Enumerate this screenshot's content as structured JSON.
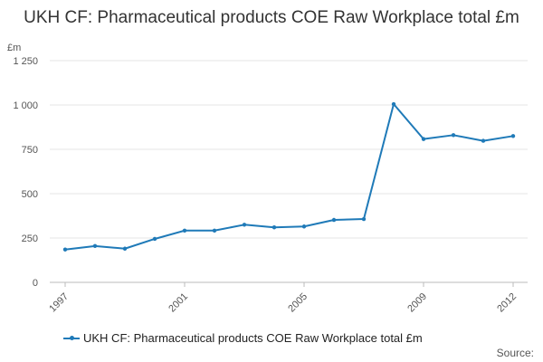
{
  "chart_data": {
    "type": "line",
    "title": "UKH CF: Pharmaceutical products COE Raw Workplace total £m",
    "ylabel": "£m",
    "xlabel": "",
    "x": [
      1997,
      1998,
      1999,
      2000,
      2001,
      2002,
      2003,
      2004,
      2005,
      2006,
      2007,
      2008,
      2009,
      2010,
      2011,
      2012
    ],
    "x_ticks": [
      1997,
      2001,
      2005,
      2009,
      2012
    ],
    "y_ticks": [
      "0",
      "250",
      "500",
      "750",
      "1 000",
      "1 250"
    ],
    "ylim": [
      0,
      1250
    ],
    "grid": true,
    "legend_position": "bottom",
    "series": [
      {
        "name": "UKH CF: Pharmaceutical products COE Raw Workplace total £m",
        "color": "#1f7ab8",
        "values": [
          185,
          205,
          190,
          245,
          292,
          292,
          325,
          310,
          315,
          352,
          357,
          1005,
          808,
          830,
          798,
          825
        ]
      }
    ],
    "source": "Source:"
  }
}
